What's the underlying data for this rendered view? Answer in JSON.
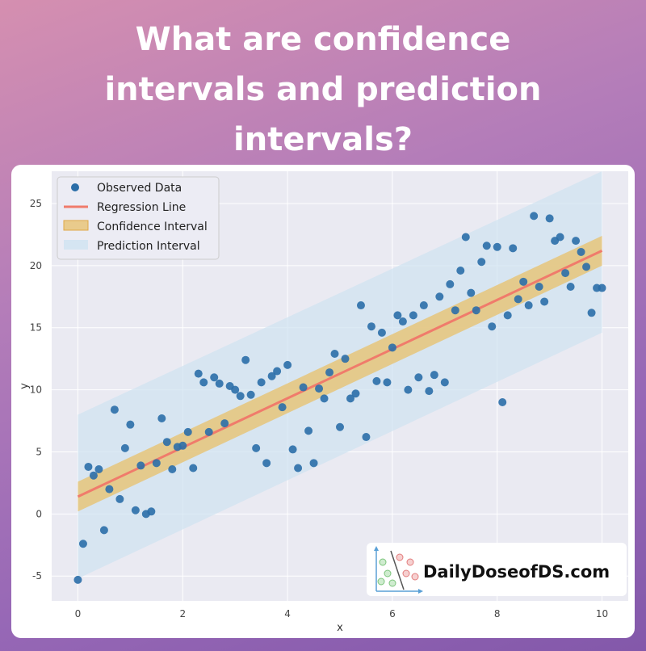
{
  "headline": {
    "line1": "What are confidence",
    "line2": "intervals and prediction",
    "line3": "intervals?"
  },
  "brand": {
    "text": "DailyDoseofDS.com"
  },
  "colors": {
    "background_top": "#d58fb0",
    "background_bottom": "#8358aa",
    "plot_bg": "#eaeaf2",
    "scatter": "#2b6ea8",
    "regression": "#f07b6b",
    "confidence": "#e8c06a",
    "prediction": "#cfe3f1"
  },
  "chart_data": {
    "type": "scatter",
    "title": "",
    "xlabel": "x",
    "ylabel": "y",
    "xlim": [
      -0.5,
      10.5
    ],
    "ylim": [
      -7,
      27.6
    ],
    "xticks": [
      0,
      2,
      4,
      6,
      8,
      10
    ],
    "yticks": [
      -5,
      0,
      5,
      10,
      15,
      20,
      25
    ],
    "grid": true,
    "legend_position": "top-left",
    "legend": [
      "Observed Data",
      "Regression Line",
      "Confidence Interval",
      "Prediction Interval"
    ],
    "regression_line": {
      "x": [
        0,
        10
      ],
      "y": [
        1.4,
        21.2
      ]
    },
    "confidence_interval": {
      "x": [
        0,
        10
      ],
      "lower": [
        0.2,
        20.0
      ],
      "upper": [
        2.6,
        22.4
      ]
    },
    "prediction_interval": {
      "x": [
        0,
        10
      ],
      "lower": [
        -5.2,
        14.6
      ],
      "upper": [
        8.0,
        27.6
      ]
    },
    "series": [
      {
        "name": "Observed Data",
        "x": [
          0,
          0.1,
          0.2,
          0.3,
          0.4,
          0.5,
          0.6,
          0.7,
          0.8,
          0.9,
          1.0,
          1.1,
          1.2,
          1.3,
          1.4,
          1.5,
          1.6,
          1.7,
          1.8,
          1.9,
          2.0,
          2.1,
          2.2,
          2.3,
          2.4,
          2.5,
          2.6,
          2.7,
          2.8,
          2.9,
          3.0,
          3.1,
          3.2,
          3.3,
          3.4,
          3.5,
          3.6,
          3.7,
          3.8,
          3.9,
          4.0,
          4.1,
          4.2,
          4.3,
          4.4,
          4.5,
          4.6,
          4.7,
          4.8,
          4.9,
          5.0,
          5.1,
          5.2,
          5.3,
          5.4,
          5.5,
          5.6,
          5.7,
          5.8,
          5.9,
          6.0,
          6.1,
          6.2,
          6.3,
          6.4,
          6.5,
          6.6,
          6.7,
          6.8,
          6.9,
          7.0,
          7.1,
          7.2,
          7.3,
          7.4,
          7.5,
          7.6,
          7.7,
          7.8,
          7.9,
          8.0,
          8.1,
          8.2,
          8.3,
          8.4,
          8.5,
          8.6,
          8.7,
          8.8,
          8.9,
          9.0,
          9.1,
          9.2,
          9.3,
          9.4,
          9.5,
          9.6,
          9.7,
          9.8,
          9.9,
          10.0
        ],
        "y": [
          -5.3,
          -2.4,
          3.8,
          3.1,
          3.6,
          -1.3,
          2.0,
          8.4,
          1.2,
          5.3,
          7.2,
          0.3,
          3.9,
          0.0,
          0.2,
          4.1,
          7.7,
          5.8,
          3.6,
          5.4,
          5.5,
          6.6,
          3.7,
          11.3,
          10.6,
          6.6,
          11.0,
          10.5,
          7.3,
          10.3,
          10.0,
          9.5,
          12.4,
          9.6,
          5.3,
          10.6,
          4.1,
          11.1,
          11.5,
          8.6,
          12.0,
          5.2,
          3.7,
          10.2,
          6.7,
          4.1,
          10.1,
          9.3,
          11.4,
          12.9,
          7.0,
          12.5,
          9.3,
          9.7,
          16.8,
          6.2,
          15.1,
          10.7,
          14.6,
          10.6,
          13.4,
          16.0,
          15.5,
          10.0,
          16.0,
          11.0,
          16.8,
          9.9,
          11.2,
          17.5,
          10.6,
          18.5,
          16.4,
          19.6,
          22.3,
          17.8,
          16.4,
          20.3,
          21.6,
          15.1,
          21.5,
          9.0,
          16.0,
          21.4,
          17.3,
          18.7,
          16.8,
          24.0,
          18.3,
          17.1,
          23.8,
          22.0,
          22.3,
          19.4,
          18.3,
          22.0,
          21.1,
          19.9,
          16.2,
          18.2,
          18.2
        ]
      }
    ]
  }
}
